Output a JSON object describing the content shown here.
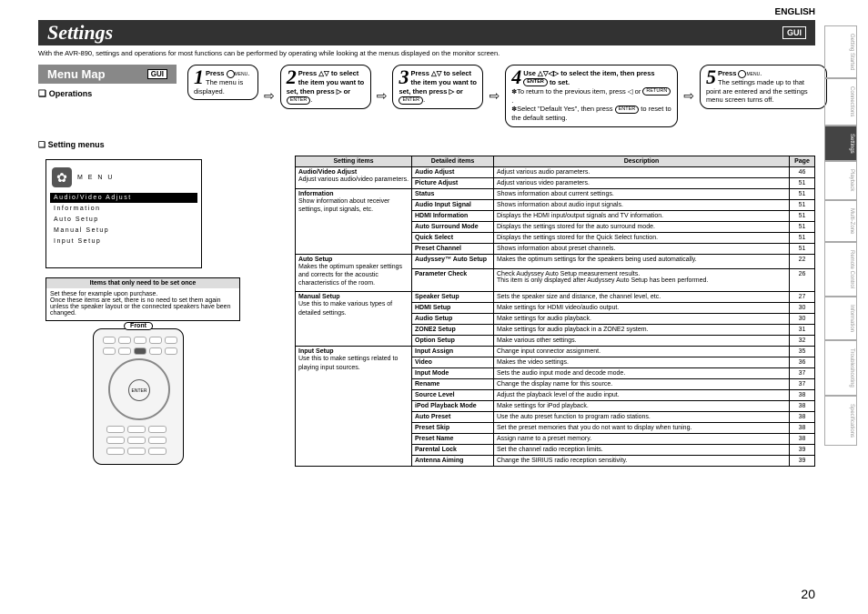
{
  "language": "ENGLISH",
  "title": "Settings",
  "gui": "GUI",
  "intro": "With the AVR-890, settings and operations for most functions can be performed by operating while looking at the menus displayed on the monitor screen.",
  "menuMap": "Menu Map",
  "operations": "Operations",
  "settingMenus": "Setting menus",
  "step1": {
    "t": "Press",
    "d": "The menu is displayed.",
    "sym": "MENU"
  },
  "step2": "Press △▽ to select the item you want to set, then press ▷ or",
  "step3": "Press △▽ to select the item you want to set, then press ▷ or",
  "step4a": "Use △▽◁▷ to select the item,  then press",
  "step4b": "to set.",
  "step4s1": "To return to the previous item, press ◁ or",
  "step4s2": "Select \"Default Yes\", then press",
  "step4s3": "to reset to the default setting.",
  "step5a": "Press",
  "step5b": "The settings made up to that point are entered and the settings menu screen turns off.",
  "osd": {
    "menu": "M E N U",
    "items": [
      "Audio/Video Adjust",
      "Information",
      "Auto Setup",
      "Manual Setup",
      "Input Setup"
    ]
  },
  "noteHdr": "Items that only need to be set once",
  "noteBody": "Set these for example upon purchase.\nOnce these items are set, there is no need to set them again unless the speaker layout or the connected speakers have been changed.",
  "front": "Front",
  "enter": "ENTER",
  "th": {
    "s": "Setting items",
    "d": "Detailed items",
    "desc": "Description",
    "p": "Page"
  },
  "cats": [
    {
      "name": "Audio/Video Adjust",
      "desc": "Adjust various audio/video parameters.",
      "rows": [
        {
          "d": "Audio Adjust",
          "desc": "Adjust various audio parameters.",
          "p": "46"
        },
        {
          "d": "Picture Adjust",
          "desc": "Adjust various video parameters.",
          "p": "51"
        }
      ]
    },
    {
      "name": "Information",
      "desc": "Show information about receiver settings, input signals, etc.",
      "rows": [
        {
          "d": "Status",
          "desc": "Shows information about current settings.",
          "p": "51"
        },
        {
          "d": "Audio Input Signal",
          "desc": "Shows information about audio input signals.",
          "p": "51"
        },
        {
          "d": "HDMI Information",
          "desc": "Displays the HDMI input/output signals and TV information.",
          "p": "51"
        },
        {
          "d": "Auto Surround Mode",
          "desc": "Displays the settings stored for the auto surround mode.",
          "p": "51"
        },
        {
          "d": "Quick Select",
          "desc": "Displays the settings stored for the Quick Select function.",
          "p": "51"
        },
        {
          "d": "Preset Channel",
          "desc": "Shows information about preset channels.",
          "p": "51"
        }
      ]
    },
    {
      "name": "Auto Setup",
      "desc": "Makes the optimum speaker settings and corrects for the acoustic characteristics of the room.",
      "rows": [
        {
          "d": "Audyssey™ Auto Setup",
          "desc": "Makes the optimum settings for the speakers being used automatically.",
          "p": "22"
        },
        {
          "d": "Parameter Check",
          "desc": "Check Audyssey Auto Setup measurement results.\nThis item is only displayed after Audyssey Auto Setup has been performed.",
          "p": "26"
        }
      ]
    },
    {
      "name": "Manual Setup",
      "desc": "Use this to make various types of detailed settings.",
      "rows": [
        {
          "d": "Speaker Setup",
          "desc": "Sets the speaker size and distance, the channel level, etc.",
          "p": "27"
        },
        {
          "d": "HDMI Setup",
          "desc": "Make settings for HDMI video/audio output.",
          "p": "30"
        },
        {
          "d": "Audio Setup",
          "desc": "Make settings for audio playback.",
          "p": "30"
        },
        {
          "d": "ZONE2 Setup",
          "desc": "Make settings for audio playback in a ZONE2 system.",
          "p": "31"
        },
        {
          "d": "Option Setup",
          "desc": "Make various other settings.",
          "p": "32"
        }
      ]
    },
    {
      "name": "Input Setup",
      "desc": "Use this to make settings related to playing input sources.",
      "rows": [
        {
          "d": "Input Assign",
          "desc": "Change input connector assignment.",
          "p": "35"
        },
        {
          "d": "Video",
          "desc": "Makes the video settings.",
          "p": "36"
        },
        {
          "d": "Input Mode",
          "desc": "Sets the audio input mode and decode mode.",
          "p": "37"
        },
        {
          "d": "Rename",
          "desc": "Change the display name for this source.",
          "p": "37"
        },
        {
          "d": "Source Level",
          "desc": "Adjust the playback level of the audio input.",
          "p": "38"
        },
        {
          "d": "iPod Playback Mode",
          "desc": "Make settings for iPod playback.",
          "p": "38"
        },
        {
          "d": "Auto Preset",
          "desc": "Use the auto preset function to program radio stations.",
          "p": "38"
        },
        {
          "d": "Preset Skip",
          "desc": "Set the preset memories that you do not want to display when tuning.",
          "p": "38"
        },
        {
          "d": "Preset Name",
          "desc": "Assign name to a preset memory.",
          "p": "38"
        },
        {
          "d": "Parental Lock",
          "desc": "Set the channel radio reception limits.",
          "p": "39"
        },
        {
          "d": "Antenna Aiming",
          "desc": "Change the SIRIUS radio reception sensitivity.",
          "p": "39"
        }
      ]
    }
  ],
  "tabs": [
    "Getting Started",
    "Connections",
    "Settings",
    "Playback",
    "Multi-Zone",
    "Remote Control",
    "Information",
    "Troubleshooting",
    "Specifications"
  ],
  "pageNum": "20"
}
